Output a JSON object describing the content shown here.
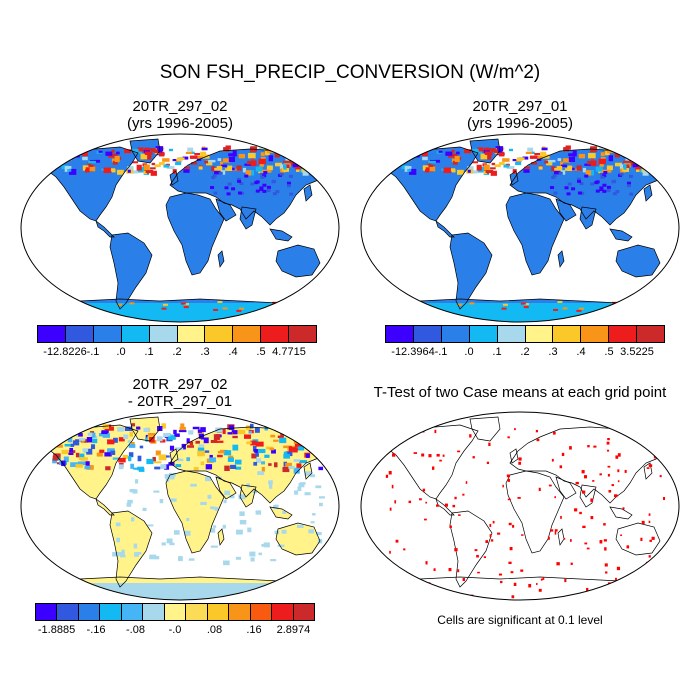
{
  "title": "SON FSH_PRECIP_CONVERSION (W/m^2)",
  "panels": [
    {
      "id": "tl",
      "title_line1": "20TR_297_02",
      "title_line2": "(yrs 1996-2005)"
    },
    {
      "id": "tr",
      "title_line1": "20TR_297_01",
      "title_line2": "(yrs 1996-2005)"
    },
    {
      "id": "bl",
      "title_line1": "20TR_297_02",
      "title_line2": "- 20TR_297_01"
    },
    {
      "id": "br",
      "title_line1": "T-Test of two Case means at each grid point",
      "title_line2": ""
    }
  ],
  "colorbars": {
    "top_left": {
      "colors": [
        "#3b00ff",
        "#3159e0",
        "#2b7fe8",
        "#12b9f2",
        "#a8d8ec",
        "#fff38a",
        "#fbc82a",
        "#f89518",
        "#ee1d1d",
        "#cc2a2a"
      ],
      "labels": [
        "-12.8226",
        "-.1",
        ".0",
        ".1",
        ".2",
        ".3",
        ".4",
        ".5",
        "4.7715"
      ]
    },
    "top_right": {
      "colors": [
        "#3b00ff",
        "#3159e0",
        "#2b7fe8",
        "#12b9f2",
        "#a8d8ec",
        "#fff38a",
        "#fbc82a",
        "#f89518",
        "#ee1d1d",
        "#cc2a2a"
      ],
      "labels": [
        "-12.3964",
        "-.1",
        ".0",
        ".1",
        ".2",
        ".3",
        ".4",
        ".5",
        "3.5225"
      ]
    },
    "bottom_left": {
      "colors": [
        "#3b00ff",
        "#3159e0",
        "#2b7fe8",
        "#12b9f2",
        "#45b5f5",
        "#a8d8ec",
        "#fff38a",
        "#fbdc56",
        "#fbc82a",
        "#f89518",
        "#f85a10",
        "#ee1d1d",
        "#cc2a2a"
      ],
      "labels": [
        "-1.8885",
        "-.16",
        "-.08",
        "-.0",
        ".08",
        ".16",
        "2.8974"
      ]
    }
  },
  "significance_note": "Cells are significant at 0.1 level",
  "colors": {
    "ocean": "#ffffff",
    "land_base_abs": "#2b7fe8",
    "land_base_diff": "#fff38a",
    "antarctic_abs": "#12b9f2",
    "significant": "#ff0000"
  }
}
